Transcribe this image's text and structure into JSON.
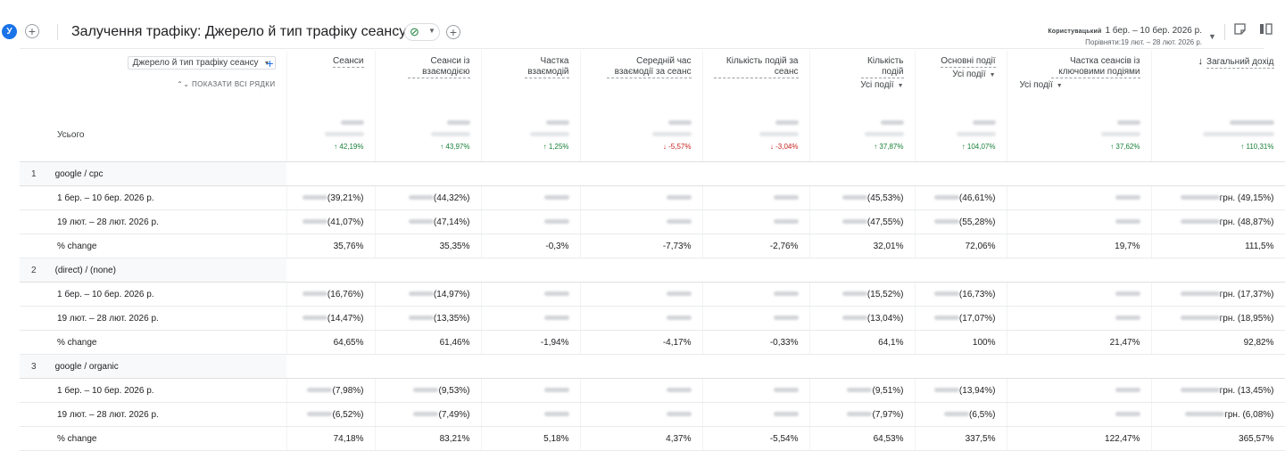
{
  "header": {
    "avatar_letter": "У",
    "title": "Залучення трафіку: Джерело й тип трафіку сеансу",
    "status_icon": "check-circle",
    "date_label": "Користувацький",
    "date_range": "1 бер. – 10 бер. 2026 р.",
    "compare_range": "Порівняти:19 лют. – 28 лют. 2026 р."
  },
  "table": {
    "dimension_label": "Джерело й тип трафіку сеансу",
    "show_all_rows": "ПОКАЗАТИ ВСІ РЯДКИ",
    "totals_label": "Усього",
    "columns": [
      {
        "name": "Сеанси",
        "sub": ""
      },
      {
        "name": "Сеанси із взаємодією",
        "sub": ""
      },
      {
        "name": "Частка взаємодій",
        "sub": ""
      },
      {
        "name": "Середній час взаємодії за сеанс",
        "sub": ""
      },
      {
        "name": "Кількість подій за сеанс",
        "sub": ""
      },
      {
        "name": "Кількість подій",
        "sub": "Усі події"
      },
      {
        "name": "Основні події",
        "sub": "Усі події"
      },
      {
        "name": "Частка сеансів із ключовими подіями",
        "sub": "Усі події"
      },
      {
        "name": "Загальний дохід",
        "sub": ""
      }
    ],
    "sort_arrow": "↓",
    "totals_changes": [
      "↑ 42,19%",
      "↑ 43,97%",
      "↑ 1,25%",
      "↓ -5,57%",
      "↓ -3,04%",
      "↑ 37,87%",
      "↑ 104,07%",
      "↑ 37,62%",
      "↑ 110,31%"
    ],
    "groups": [
      {
        "index": "1",
        "name": "google / cpc",
        "rows": [
          {
            "label": "1 бер. – 10 бер. 2026 р.",
            "cells": [
              "(39,21%)",
              "(44,32%)",
              "",
              "",
              "",
              "(45,53%)",
              "(46,61%)",
              "",
              "грн. (49,15%)"
            ]
          },
          {
            "label": "19 лют. – 28 лют. 2026 р.",
            "cells": [
              "(41,07%)",
              "(47,14%)",
              "",
              "",
              "",
              "(47,55%)",
              "(55,28%)",
              "",
              "грн. (48,87%)"
            ]
          },
          {
            "label": "% change",
            "cells": [
              "35,76%",
              "35,35%",
              "-0,3%",
              "-7,73%",
              "-2,76%",
              "32,01%",
              "72,06%",
              "19,7%",
              "111,5%"
            ]
          }
        ]
      },
      {
        "index": "2",
        "name": "(direct) / (none)",
        "rows": [
          {
            "label": "1 бер. – 10 бер. 2026 р.",
            "cells": [
              "(16,76%)",
              "(14,97%)",
              "",
              "",
              "",
              "(15,52%)",
              "(16,73%)",
              "",
              "грн. (17,37%)"
            ]
          },
          {
            "label": "19 лют. – 28 лют. 2026 р.",
            "cells": [
              "(14,47%)",
              "(13,35%)",
              "",
              "",
              "",
              "(13,04%)",
              "(17,07%)",
              "",
              "грн. (18,95%)"
            ]
          },
          {
            "label": "% change",
            "cells": [
              "64,65%",
              "61,46%",
              "-1,94%",
              "-4,17%",
              "-0,33%",
              "64,1%",
              "100%",
              "21,47%",
              "92,82%"
            ]
          }
        ]
      },
      {
        "index": "3",
        "name": "google / organic",
        "rows": [
          {
            "label": "1 бер. – 10 бер. 2026 р.",
            "cells": [
              "(7,98%)",
              "(9,53%)",
              "",
              "",
              "",
              "(9,51%)",
              "(13,94%)",
              "",
              "грн. (13,45%)"
            ]
          },
          {
            "label": "19 лют. – 28 лют. 2026 р.",
            "cells": [
              "(6,52%)",
              "(7,49%)",
              "",
              "",
              "",
              "(7,97%)",
              "(6,5%)",
              "",
              "грн. (6,08%)"
            ]
          },
          {
            "label": "% change",
            "cells": [
              "74,18%",
              "83,21%",
              "5,18%",
              "4,37%",
              "-5,54%",
              "64,53%",
              "337,5%",
              "122,47%",
              "365,57%"
            ]
          }
        ]
      }
    ]
  }
}
